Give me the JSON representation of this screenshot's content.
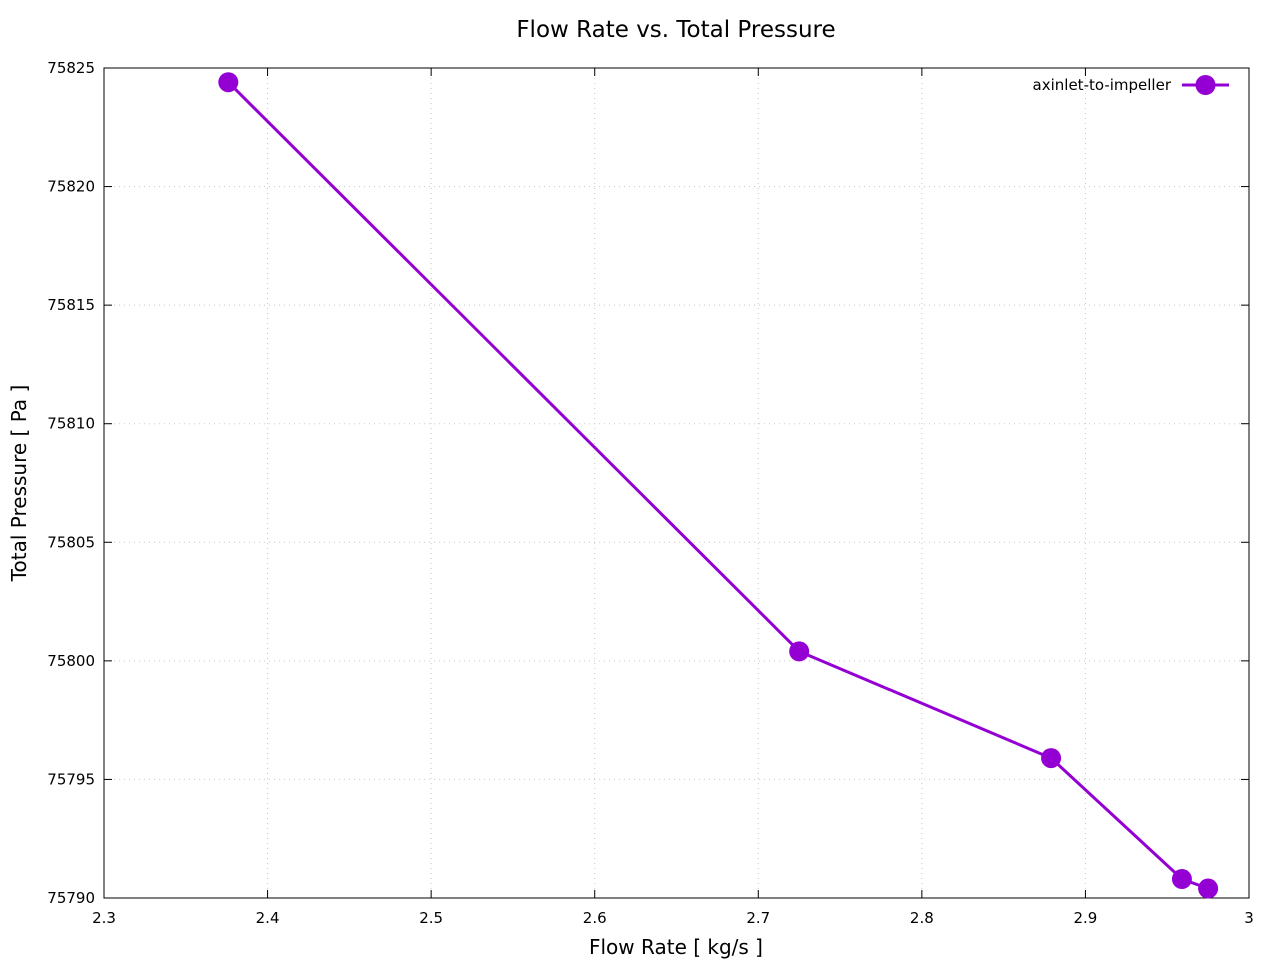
{
  "chart_data": {
    "type": "line",
    "title": "Flow Rate vs. Total Pressure",
    "xlabel": "Flow Rate [ kg/s ]",
    "ylabel": "Total Pressure [ Pa ]",
    "xlim": [
      2.3,
      3.0
    ],
    "ylim": [
      75790,
      75825
    ],
    "xticks": [
      2.3,
      2.4,
      2.5,
      2.6,
      2.7,
      2.8,
      2.9,
      3.0
    ],
    "xtick_labels": [
      "2.3",
      "2.4",
      "2.5",
      "2.6",
      "2.7",
      "2.8",
      "2.9",
      "3"
    ],
    "yticks": [
      75790,
      75795,
      75800,
      75805,
      75810,
      75815,
      75820,
      75825
    ],
    "ytick_labels": [
      "75790",
      "75795",
      "75800",
      "75805",
      "75810",
      "75815",
      "75820",
      "75825"
    ],
    "grid": true,
    "legend_position": "top-right",
    "series": [
      {
        "name": "axinlet-to-impeller",
        "color": "#9400d3",
        "marker": "circle",
        "x": [
          2.376,
          2.725,
          2.879,
          2.959,
          2.975
        ],
        "y": [
          75824.4,
          75800.4,
          75795.9,
          75790.8,
          75790.4
        ]
      }
    ]
  }
}
